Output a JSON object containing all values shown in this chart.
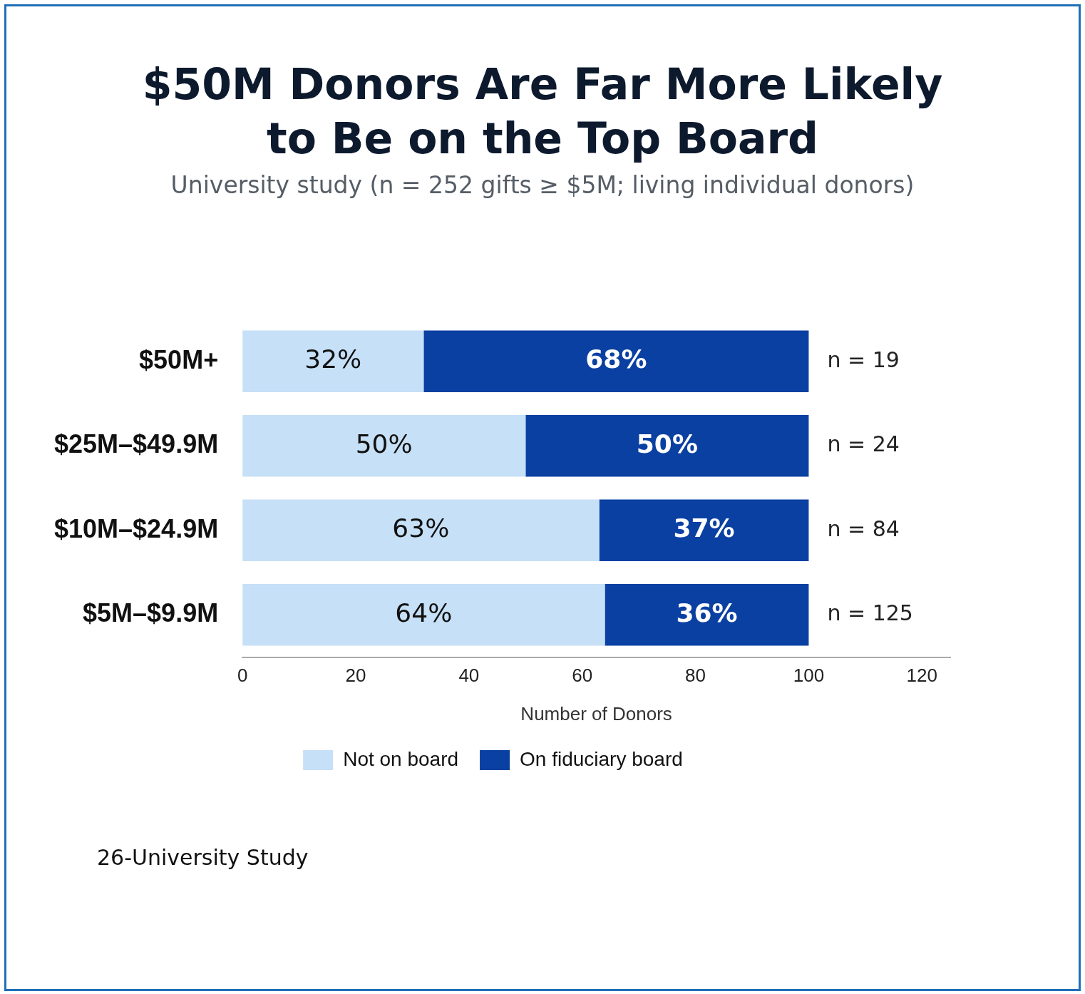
{
  "chart_data": {
    "type": "bar",
    "orientation": "horizontal",
    "stacked": true,
    "title": "$50M Donors Are Far More Likely to Be on the Top Board",
    "subtitle": "University study (n = 252 gifts ≥ $5M; living individual donors)",
    "xlabel": "Number of Donors",
    "categories": [
      "$50M+",
      "$25M–$49.9M",
      "$10M–$24.9M",
      "$5M–$9.9M"
    ],
    "series": [
      {
        "name": "Not on board",
        "color": "#c6e0f7",
        "values": [
          32,
          50,
          63,
          64
        ],
        "value_labels": [
          "32%",
          "50%",
          "63%",
          "64%"
        ]
      },
      {
        "name": "On fiduciary board",
        "color": "#0a40a2",
        "values": [
          68,
          50,
          37,
          36
        ],
        "value_labels": [
          "68%",
          "50%",
          "37%",
          "36%"
        ]
      }
    ],
    "xlim": [
      0,
      125
    ],
    "xticks": [
      0,
      20,
      40,
      60,
      80,
      100,
      120
    ],
    "grid": false,
    "legend": "bottom",
    "annotations": [
      "n = 19",
      "n = 24",
      "n = 84",
      "n = 125",
      "26-University Study"
    ]
  }
}
